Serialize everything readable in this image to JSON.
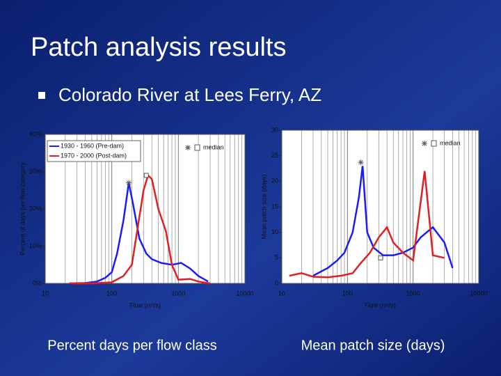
{
  "title": "Patch analysis results",
  "bullet": "Colorado River at Lees Ferry, AZ",
  "captions": [
    "Percent days per flow class",
    "Mean patch size (days)"
  ],
  "chart_data": [
    {
      "type": "line",
      "ylabel": "Percent of days per flow category",
      "xlabel": "Flow (m³/s)",
      "log_x": true,
      "xlim": [
        10,
        10000
      ],
      "xticks": [
        10,
        100,
        1000,
        10000
      ],
      "ylim": [
        0,
        40
      ],
      "yticks": [
        {
          "value": 0,
          "label": "0%"
        },
        {
          "value": 10,
          "label": "10%"
        },
        {
          "value": 20,
          "label": "20%"
        },
        {
          "value": 30,
          "label": "30%"
        },
        {
          "value": 40,
          "label": "40%"
        }
      ],
      "median_label": "median",
      "legend": true,
      "series": [
        {
          "name": "1930 - 1960 (Pre-dam)",
          "color": "#1a1aff",
          "x": [
            23,
            40,
            60,
            80,
            100,
            120,
            150,
            180,
            210,
            260,
            330,
            400,
            550,
            800,
            1100,
            1500,
            2000,
            2800
          ],
          "values": [
            0,
            0.1,
            0.5,
            1.5,
            3,
            8,
            17,
            27,
            21,
            12,
            8,
            6.5,
            5.5,
            5,
            5.5,
            4,
            2,
            0.5
          ],
          "median": {
            "x": 180,
            "value": 27
          }
        },
        {
          "name": "1970 - 2000 (Post-dam)",
          "color": "#e02020",
          "x": [
            23,
            50,
            100,
            150,
            200,
            250,
            300,
            350,
            400,
            500,
            650,
            800,
            1000,
            1500,
            2000,
            3000
          ],
          "values": [
            0,
            0,
            0.3,
            2,
            5,
            16,
            25,
            29,
            28,
            20,
            14,
            5,
            1,
            1.2,
            0.5,
            0
          ],
          "median": {
            "x": 330,
            "value": 29
          }
        }
      ]
    },
    {
      "type": "line",
      "ylabel": "Mean patch size (days)",
      "xlabel": "Flow (m³/s)",
      "log_x": true,
      "xlim": [
        10,
        10000
      ],
      "xticks": [
        10,
        100,
        1000,
        10000
      ],
      "ylim": [
        0,
        30
      ],
      "yticks": [
        0,
        5,
        10,
        15,
        20,
        25,
        30
      ],
      "median_label": "median",
      "legend": false,
      "series": [
        {
          "name": "1930 - 1960 (Pre-dam)",
          "color": "#1a1aff",
          "x": [
            30,
            50,
            70,
            90,
            120,
            150,
            170,
            200,
            250,
            350,
            500,
            700,
            1000,
            1300,
            2000,
            3000,
            4000
          ],
          "values": [
            1.5,
            3,
            4.5,
            6,
            10,
            17,
            23,
            10,
            7,
            5.5,
            5.5,
            6,
            7,
            9,
            11,
            8,
            3
          ],
          "median": {
            "x": 160,
            "value": 23.7
          }
        },
        {
          "name": "1970 - 2000 (Post-dam)",
          "color": "#e02020",
          "x": [
            13,
            20,
            30,
            50,
            80,
            120,
            160,
            220,
            300,
            400,
            500,
            700,
            1000,
            1500,
            2000,
            3000
          ],
          "values": [
            1.5,
            2,
            1.3,
            1.2,
            1.5,
            2,
            4,
            6,
            9,
            11,
            8,
            6,
            4.5,
            22,
            5.5,
            5
          ],
          "median": {
            "x": 320,
            "value": 5
          }
        }
      ]
    }
  ]
}
